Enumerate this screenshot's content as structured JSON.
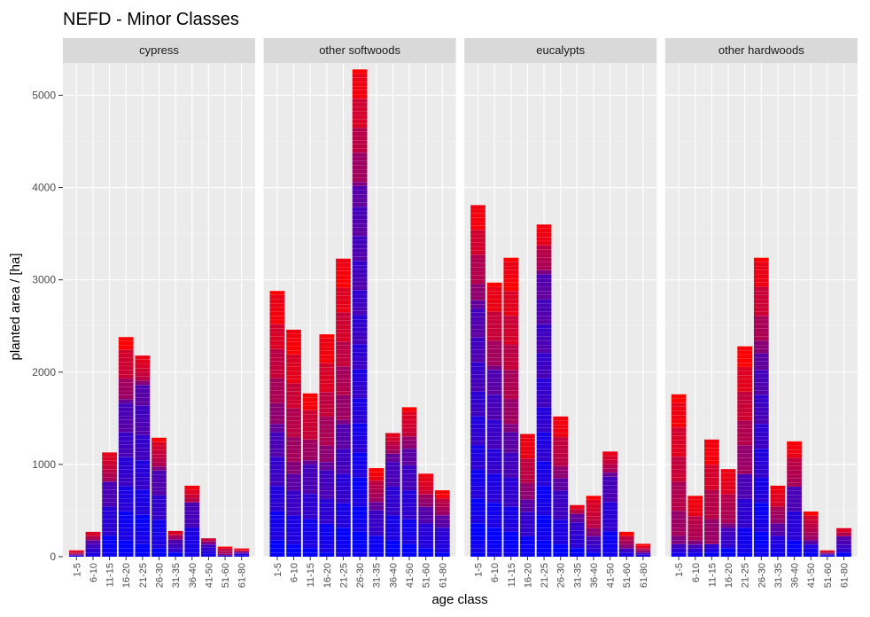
{
  "chart_data": {
    "type": "bar",
    "title": "NEFD - Minor Classes",
    "xlabel": "age class",
    "ylabel": "planted area / [ha]",
    "ylim": [
      0,
      5350
    ],
    "yticks": [
      0,
      1000,
      2000,
      3000,
      4000,
      5000
    ],
    "grid": true,
    "stacked": true,
    "color_gradient": [
      "#0000ff",
      "#ff0000"
    ],
    "categories": [
      "1-5",
      "6-10",
      "11-15",
      "16-20",
      "21-25",
      "26-30",
      "31-35",
      "36-40",
      "41-50",
      "51-60",
      "61-80"
    ],
    "facets": [
      {
        "name": "cypress",
        "totals": [
          70,
          270,
          1130,
          2380,
          2180,
          1290,
          280,
          770,
          200,
          110,
          90
        ],
        "blue_share": [
          0.3,
          0.6,
          0.72,
          0.71,
          0.85,
          0.73,
          0.7,
          0.74,
          0.75,
          0.2,
          0.5
        ]
      },
      {
        "name": "other softwoods",
        "totals": [
          2880,
          2460,
          1770,
          2410,
          3230,
          5280,
          960,
          1340,
          1620,
          900,
          720
        ],
        "blue_share": [
          0.5,
          0.36,
          0.58,
          0.42,
          0.44,
          0.76,
          0.6,
          0.83,
          0.72,
          0.6,
          0.6
        ]
      },
      {
        "name": "eucalypts",
        "totals": [
          3810,
          2970,
          3240,
          1330,
          3600,
          1520,
          560,
          660,
          1140,
          270,
          140
        ],
        "blue_share": [
          0.73,
          0.68,
          0.41,
          0.47,
          0.85,
          0.55,
          0.8,
          0.35,
          0.8,
          0.4,
          0.3
        ]
      },
      {
        "name": "other hardwoods",
        "totals": [
          1760,
          660,
          1270,
          950,
          2280,
          3240,
          770,
          1250,
          490,
          70,
          310
        ],
        "blue_share": [
          0.08,
          0.18,
          0.12,
          0.35,
          0.4,
          0.68,
          0.45,
          0.6,
          0.4,
          0.5,
          0.65
        ]
      }
    ]
  }
}
